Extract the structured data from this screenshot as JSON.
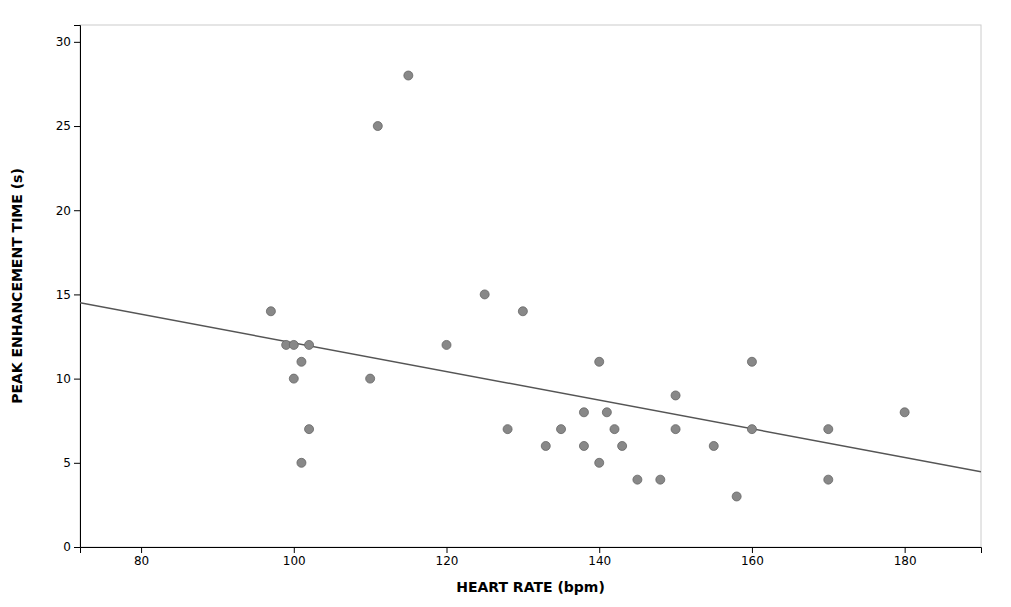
{
  "chart_data": {
    "type": "scatter",
    "xlabel": "HEART RATE (bpm)",
    "ylabel": "PEAK ENHANCEMENT TIME (s)",
    "xlim": [
      72,
      190
    ],
    "ylim": [
      0,
      31
    ],
    "xticks": [
      80,
      100,
      120,
      140,
      160,
      180
    ],
    "yticks": [
      0,
      5,
      10,
      15,
      20,
      25,
      30
    ],
    "grid": false,
    "series": [
      {
        "type": "scatter",
        "color": "#888888",
        "x": [
          97,
          99,
          100,
          100,
          101,
          101,
          102,
          102,
          110,
          111,
          115,
          120,
          125,
          128,
          130,
          133,
          135,
          138,
          138,
          140,
          140,
          141,
          142,
          143,
          145,
          148,
          150,
          150,
          155,
          158,
          160,
          160,
          170,
          170,
          180
        ],
        "values": [
          14,
          12,
          10,
          12,
          11,
          5,
          12,
          7,
          10,
          25,
          28,
          12,
          15,
          7,
          14,
          6,
          7,
          8,
          6,
          11,
          5,
          8,
          7,
          6,
          4,
          4,
          9,
          7,
          6,
          3,
          7,
          11,
          7,
          4,
          8
        ]
      },
      {
        "type": "line",
        "color": "#555555",
        "x": [
          72,
          190
        ],
        "values": [
          14.5,
          4.47
        ]
      }
    ]
  }
}
